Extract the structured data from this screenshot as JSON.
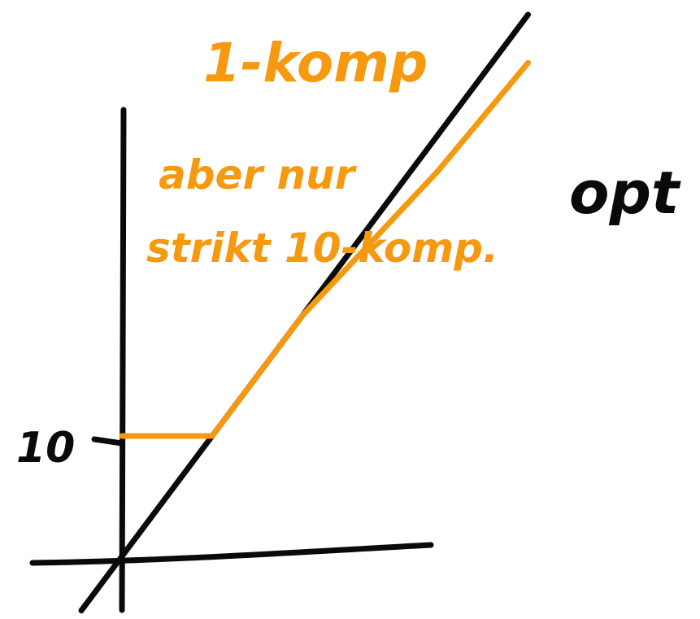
{
  "colors": {
    "ink": "#0a0a0a",
    "accent": "#f59a10"
  },
  "chart_data": {
    "type": "line",
    "title": "1-komp",
    "xlabel": "",
    "ylabel": "",
    "y_tick_labels": [
      "10"
    ],
    "grid": false,
    "series": [
      {
        "name": "opt",
        "x": [
          0,
          45
        ],
        "y": [
          0,
          45
        ]
      },
      {
        "x": [
          0,
          10,
          20,
          35,
          45
        ],
        "y": [
          10,
          10,
          20,
          32,
          41
        ]
      }
    ],
    "annotations": [
      "aber nur",
      "strikt 10-komp."
    ]
  }
}
